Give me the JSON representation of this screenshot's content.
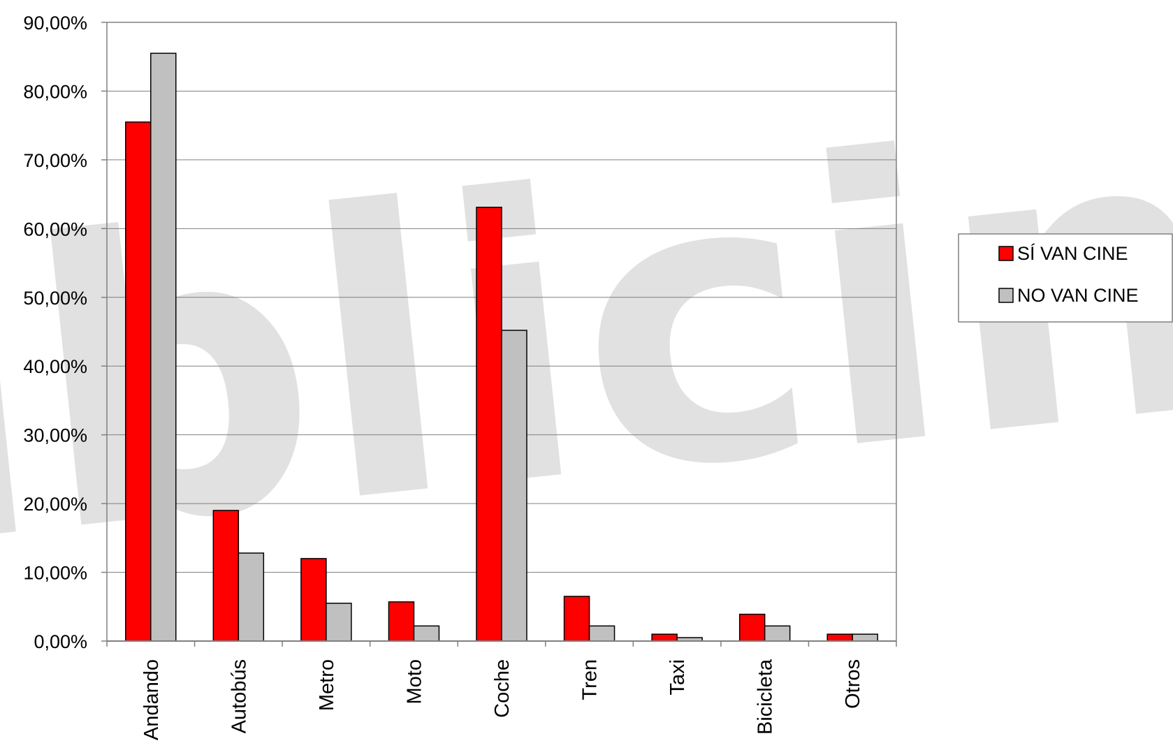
{
  "chart_data": {
    "type": "bar",
    "categories": [
      "Andando",
      "Autobús",
      "Metro",
      "Moto",
      "Coche",
      "Tren",
      "Taxi",
      "Bicicleta",
      "Otros"
    ],
    "series": [
      {
        "name": "SÍ VAN CINE",
        "color": "#ff0000",
        "values": [
          75.5,
          19.0,
          12.0,
          5.7,
          63.1,
          6.5,
          1.0,
          3.9,
          1.0
        ]
      },
      {
        "name": "NO VAN CINE",
        "color": "#c0c0c0",
        "values": [
          85.5,
          12.8,
          5.5,
          2.2,
          45.2,
          2.2,
          0.5,
          2.2,
          1.0
        ]
      }
    ],
    "ylim": [
      0,
      90
    ],
    "yticks": [
      0,
      10,
      20,
      30,
      40,
      50,
      60,
      70,
      80,
      90
    ],
    "ytick_labels": [
      "0,00%",
      "10,00%",
      "20,00%",
      "30,00%",
      "40,00%",
      "50,00%",
      "60,00%",
      "70,00%",
      "80,00%",
      "90,00%"
    ],
    "grid": true,
    "legend_position": "right",
    "watermark": "publicine"
  }
}
